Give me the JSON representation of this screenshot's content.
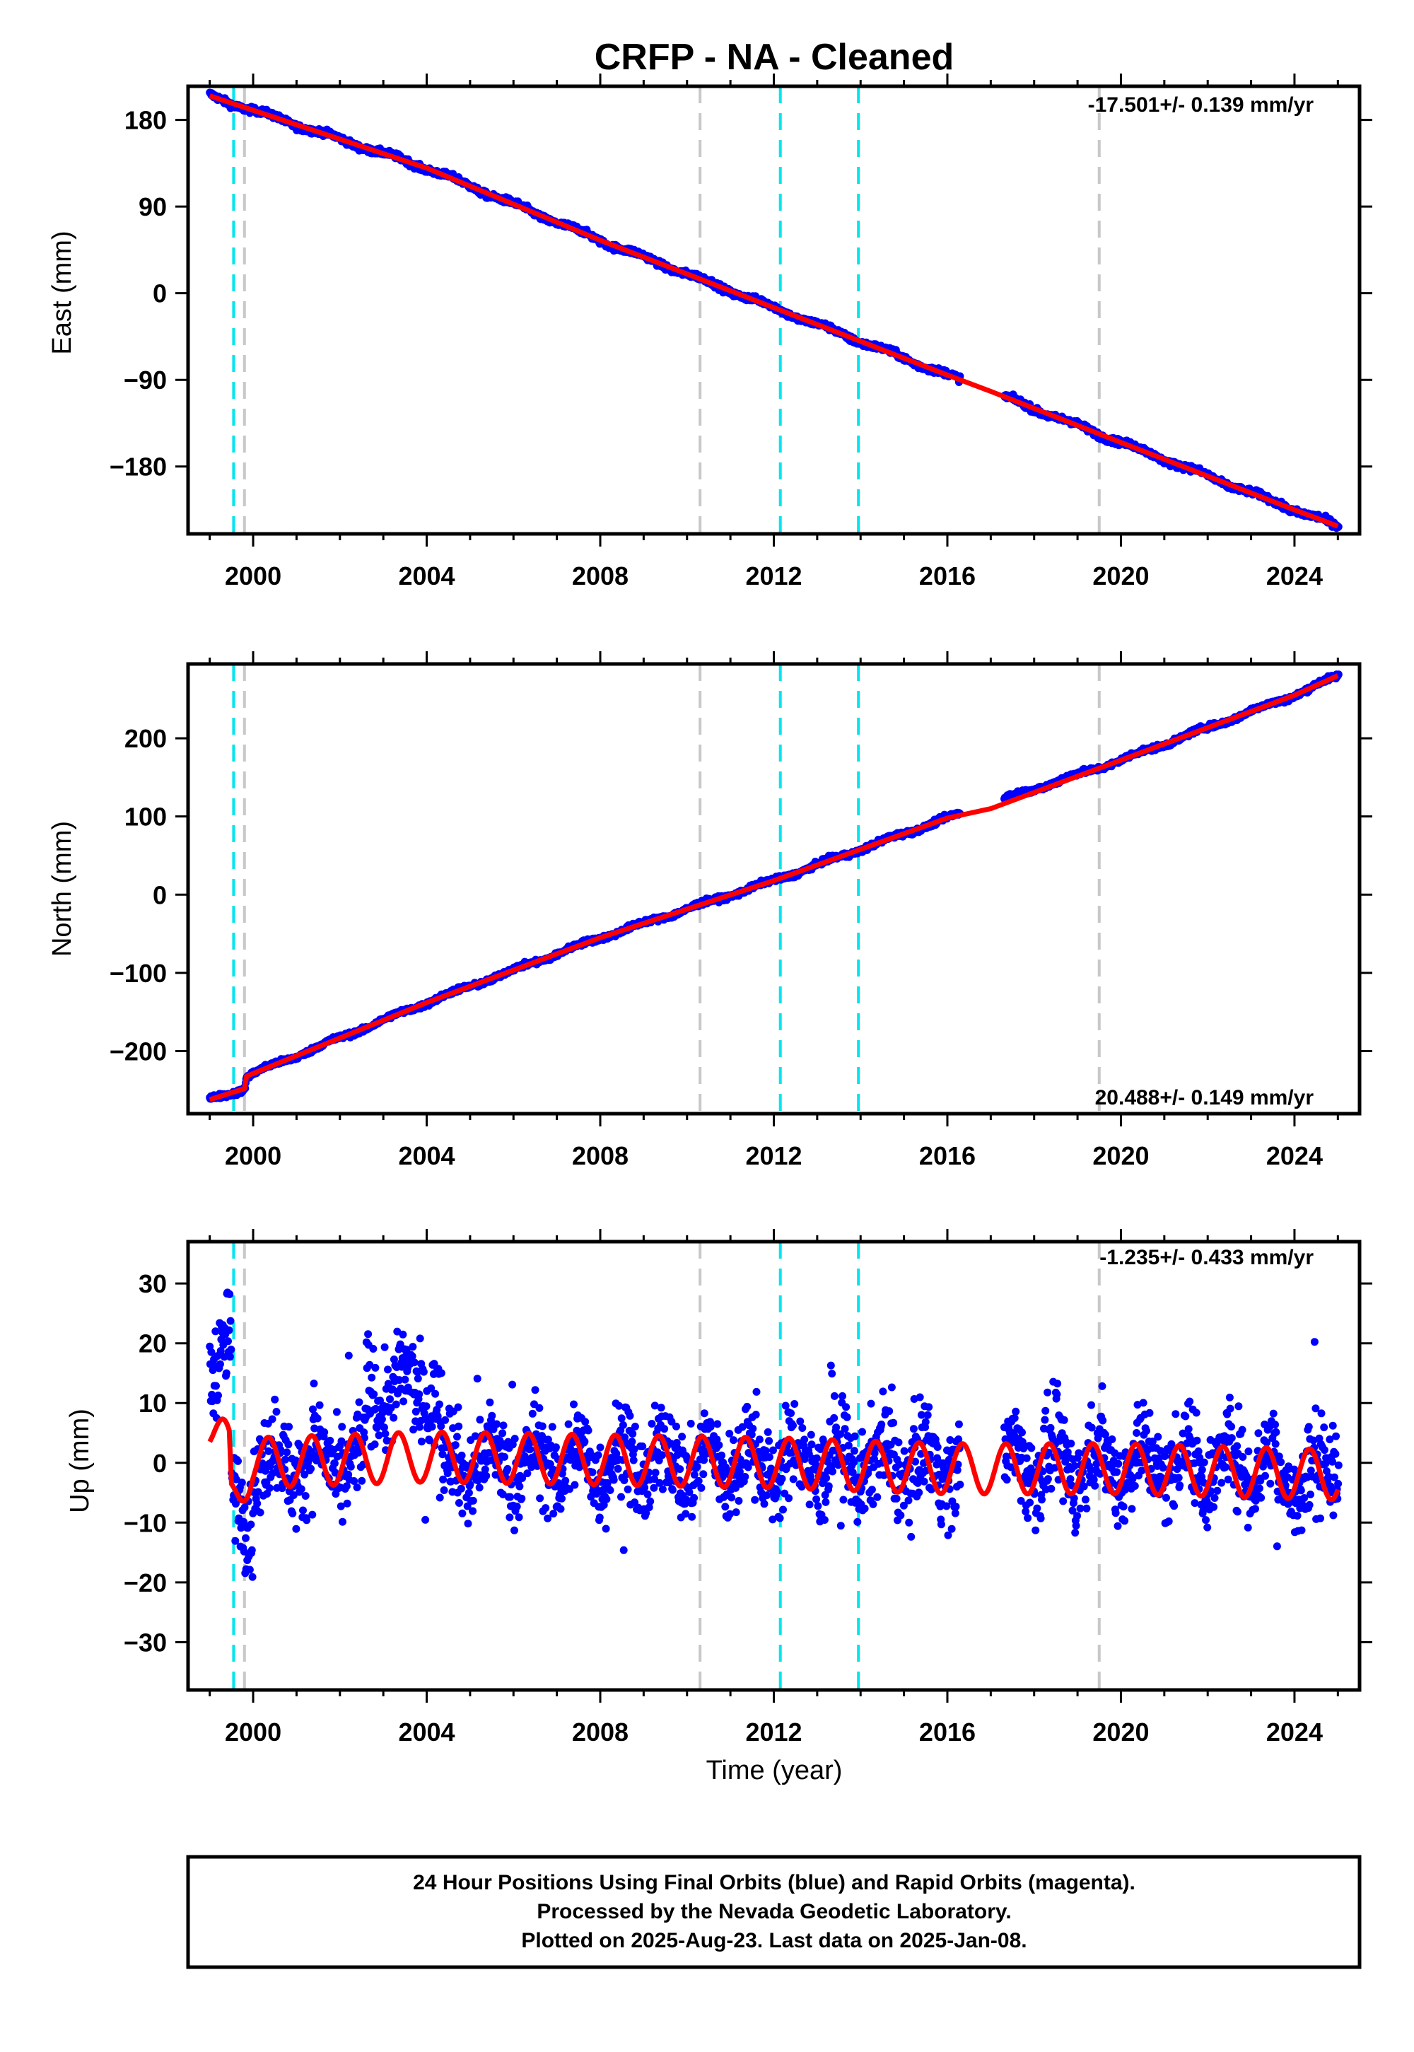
{
  "title": "CRFP  - NA - Cleaned",
  "colors": {
    "daily_positions": "#0000ff",
    "model_fit": "#ff0000",
    "offset_equipment": "#00e5ee",
    "offset_other": "#c8c8c8",
    "frame": "#000000"
  },
  "chart_data": [
    {
      "type": "scatter",
      "component": "east",
      "ylabel": "East (mm)",
      "xlabel": "",
      "xlim": [
        1998.5,
        2025.5
      ],
      "ylim": [
        -250,
        215
      ],
      "x_ticks": [
        2000,
        2004,
        2008,
        2012,
        2016,
        2020,
        2024
      ],
      "y_ticks": [
        180,
        90,
        0,
        -90,
        -180
      ],
      "y_tick_labels": [
        "180",
        "90",
        "0",
        "−90",
        "−180"
      ],
      "rate_text": "-17.501+/- 0.139 mm/yr",
      "rate_placement": "top-right",
      "series": [
        {
          "role": "daily-positions",
          "color": "#0000ff",
          "data_start": 1999.0,
          "data_end": 2025.02,
          "gap": [
            2016.3,
            2017.3
          ],
          "trend": {
            "x": [
              1999.0,
              2000.0,
              2004.0,
              2008.0,
              2012.0,
              2016.0,
              2020.0,
              2024.0,
              2025.0
            ],
            "y": [
              205,
              190,
              130,
              55,
              -15,
              -85,
              -155,
              -225,
              -242
            ]
          }
        },
        {
          "role": "model-fit",
          "color": "#ff0000",
          "x": [
            1999.0,
            2000.0,
            2004.0,
            2008.0,
            2012.0,
            2016.0,
            2017.0,
            2020.0,
            2024.0,
            2025.0
          ],
          "y": [
            205,
            190,
            130,
            55,
            -15,
            -85,
            -102,
            -155,
            -225,
            -242
          ]
        }
      ]
    },
    {
      "type": "scatter",
      "component": "north",
      "ylabel": "North (mm)",
      "xlabel": "",
      "xlim": [
        1998.5,
        2025.5
      ],
      "ylim": [
        -280,
        295
      ],
      "x_ticks": [
        2000,
        2004,
        2008,
        2012,
        2016,
        2020,
        2024
      ],
      "y_ticks": [
        200,
        100,
        0,
        -100,
        -200
      ],
      "y_tick_labels": [
        "200",
        "100",
        "0",
        "−100",
        "−200"
      ],
      "rate_text": "20.488+/- 0.149 mm/yr",
      "rate_placement": "bottom-right",
      "series": [
        {
          "role": "daily-positions",
          "color": "#0000ff",
          "data_start": 1999.0,
          "data_end": 2025.02,
          "gap": [
            2016.3,
            2017.3
          ],
          "trend": {
            "x": [
              1999.0,
              1999.8,
              1999.85,
              2004.0,
              2008.0,
              2012.0,
              2016.0,
              2020.0,
              2024.0,
              2025.0
            ],
            "y": [
              -262,
              -248,
              -232,
              -138,
              -55,
              18,
              98,
              172,
              255,
              280
            ]
          }
        },
        {
          "role": "model-fit",
          "color": "#ff0000",
          "x": [
            1999.0,
            1999.8,
            1999.85,
            2004.0,
            2008.0,
            2012.0,
            2016.0,
            2017.0,
            2020.0,
            2024.0,
            2025.0
          ],
          "y": [
            -262,
            -248,
            -232,
            -138,
            -55,
            18,
            98,
            110,
            172,
            255,
            280
          ]
        }
      ]
    },
    {
      "type": "scatter",
      "component": "up",
      "ylabel": "Up (mm)",
      "xlabel": "Time (year)",
      "xlim": [
        1998.5,
        2025.5
      ],
      "ylim": [
        -38,
        37
      ],
      "x_ticks": [
        2000,
        2004,
        2008,
        2012,
        2016,
        2020,
        2024
      ],
      "y_ticks": [
        30,
        20,
        10,
        0,
        -10,
        -20,
        -30
      ],
      "y_tick_labels": [
        "30",
        "20",
        "10",
        "0",
        "−10",
        "−20",
        "−30"
      ],
      "rate_text": "-1.235+/- 0.433 mm/yr",
      "rate_placement": "top-right",
      "series": [
        {
          "role": "daily-positions",
          "color": "#0000ff",
          "data_start": 1999.0,
          "data_end": 2025.02,
          "gap": [
            2016.3,
            2017.3
          ],
          "scatter_mm": 5.5,
          "seasonal_amplitude_mm": 3.5
        },
        {
          "role": "model-fit",
          "color": "#ff0000",
          "seasonal_amplitude_mm": 4.2,
          "mean_level": {
            "x": [
              1999.0,
              1999.45,
              1999.5,
              2000.0,
              2004.0,
              2012.0,
              2016.0,
              2020.0,
              2025.0
            ],
            "y": [
              6,
              2,
              -6,
              0,
              1,
              0,
              -1,
              -1,
              -2
            ]
          }
        }
      ]
    }
  ],
  "offsets": {
    "equipment": [
      1999.55,
      2012.15,
      2013.95
    ],
    "other": [
      1999.8,
      2010.3,
      2019.5
    ]
  },
  "footer": {
    "line1": "24 Hour Positions Using Final Orbits (blue) and Rapid Orbits (magenta).",
    "line2": "Processed by the Nevada Geodetic Laboratory.",
    "line3": "Plotted on 2025-Aug-23. Last data on 2025-Jan-08."
  }
}
